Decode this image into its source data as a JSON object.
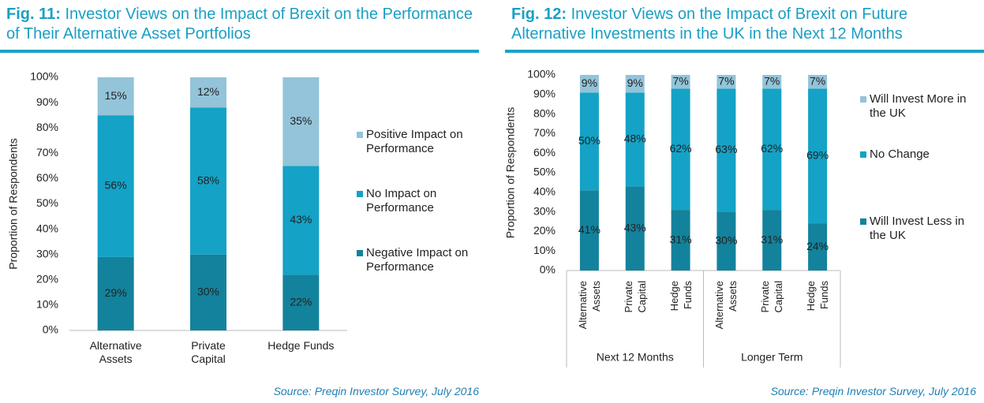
{
  "chart_data": [
    {
      "type": "bar",
      "stacked": true,
      "figure_label": "Fig. 11:",
      "title": "Investor Views on the Impact of Brexit on the Performance of Their Alternative Asset Portfolios",
      "ylabel": "Proportion of Respondents",
      "categories": [
        "Alternative Assets",
        "Private Capital",
        "Hedge Funds"
      ],
      "series": [
        {
          "name": "Negative Impact on Performance",
          "color": "#13829c",
          "values": [
            29,
            30,
            22
          ],
          "value_labels": [
            "29%",
            "30%",
            "22%"
          ]
        },
        {
          "name": "No Impact on Performance",
          "color": "#14a2c6",
          "values": [
            56,
            58,
            43
          ],
          "value_labels": [
            "56%",
            "58%",
            "43%"
          ]
        },
        {
          "name": "Positive Impact on Performance",
          "color": "#93c4d9",
          "values": [
            15,
            12,
            35
          ],
          "value_labels": [
            "15%",
            "12%",
            "35%"
          ]
        }
      ],
      "ylim": [
        0,
        100
      ],
      "yticks": [
        {
          "value": 0,
          "label": "0%"
        },
        {
          "value": 10,
          "label": "10%"
        },
        {
          "value": 20,
          "label": "20%"
        },
        {
          "value": 30,
          "label": "30%"
        },
        {
          "value": 40,
          "label": "40%"
        },
        {
          "value": 50,
          "label": "50%"
        },
        {
          "value": 60,
          "label": "60%"
        },
        {
          "value": 70,
          "label": "70%"
        },
        {
          "value": 80,
          "label": "80%"
        },
        {
          "value": 90,
          "label": "90%"
        },
        {
          "value": 100,
          "label": "100%"
        }
      ],
      "source": "Source: Preqin Investor Survey, July 2016"
    },
    {
      "type": "bar",
      "stacked": true,
      "figure_label": "Fig. 12:",
      "title": "Investor Views on the Impact of Brexit on Future Alternative Investments in the UK in the Next 12 Months",
      "ylabel": "Proportion of Respondents",
      "groups": [
        {
          "label": "Next 12 Months",
          "categories": [
            "Alternative Assets",
            "Private Capital",
            "Hedge Funds"
          ]
        },
        {
          "label": "Longer Term",
          "categories": [
            "Alternative Assets",
            "Private Capital",
            "Hedge Funds"
          ]
        }
      ],
      "series": [
        {
          "name": "Will Invest Less in the UK",
          "color": "#13829c",
          "values": [
            41,
            43,
            31,
            30,
            31,
            24
          ],
          "value_labels": [
            "41%",
            "43%",
            "31%",
            "30%",
            "31%",
            "24%"
          ]
        },
        {
          "name": "No Change",
          "color": "#14a2c6",
          "values": [
            50,
            48,
            62,
            63,
            62,
            69
          ],
          "value_labels": [
            "50%",
            "48%",
            "62%",
            "63%",
            "62%",
            "69%"
          ]
        },
        {
          "name": "Will Invest More in the UK",
          "color": "#93c4d9",
          "values": [
            9,
            9,
            7,
            7,
            7,
            7
          ],
          "value_labels": [
            "9%",
            "9%",
            "7%",
            "7%",
            "7%",
            "7%"
          ]
        }
      ],
      "ylim": [
        0,
        100
      ],
      "yticks": [
        {
          "value": 0,
          "label": "0%"
        },
        {
          "value": 10,
          "label": "10%"
        },
        {
          "value": 20,
          "label": "20%"
        },
        {
          "value": 30,
          "label": "30%"
        },
        {
          "value": 40,
          "label": "40%"
        },
        {
          "value": 50,
          "label": "50%"
        },
        {
          "value": 60,
          "label": "60%"
        },
        {
          "value": 70,
          "label": "70%"
        },
        {
          "value": 80,
          "label": "80%"
        },
        {
          "value": 90,
          "label": "90%"
        },
        {
          "value": 100,
          "label": "100%"
        }
      ],
      "source": "Source: Preqin Investor Survey, July 2016"
    }
  ]
}
